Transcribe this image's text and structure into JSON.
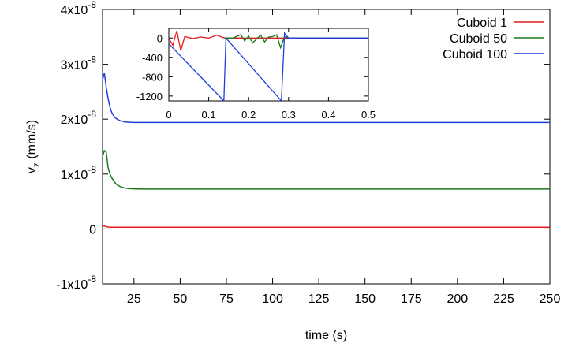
{
  "chart_data": [
    {
      "type": "line",
      "xlabel": "time (s)",
      "ylabel": "v",
      "ylabel_sub": "z",
      "ylabel_unit": " (mm/s)",
      "xlim": [
        8,
        250
      ],
      "ylim": [
        -1e-08,
        4e-08
      ],
      "x_ticks": [
        25,
        50,
        75,
        100,
        125,
        150,
        175,
        200,
        225,
        250
      ],
      "y_ticks": [
        {
          "value": -1e-08,
          "mant": "-1x10",
          "exp": "-8"
        },
        {
          "value": 0,
          "mant": "0",
          "exp": ""
        },
        {
          "value": 1e-08,
          "mant": "1x10",
          "exp": "-8"
        },
        {
          "value": 2e-08,
          "mant": "2x10",
          "exp": "-8"
        },
        {
          "value": 3e-08,
          "mant": "3x10",
          "exp": "-8"
        },
        {
          "value": 4e-08,
          "mant": "4x10",
          "exp": "-8"
        }
      ],
      "legend_position": "top-right",
      "grid": false,
      "series": [
        {
          "name": "Cuboid 1",
          "color": "#e41a1c",
          "x": [
            8,
            9,
            10,
            12,
            15,
            20,
            30,
            50,
            100,
            150,
            200,
            250
          ],
          "y": [
            5e-10,
            6e-10,
            4e-10,
            3e-10,
            3e-10,
            3e-10,
            3e-10,
            3e-10,
            3e-10,
            3e-10,
            3e-10,
            3e-10
          ]
        },
        {
          "name": "Cuboid 50",
          "color": "#1b7a1b",
          "x": [
            8,
            9,
            10,
            11,
            12,
            13,
            14,
            15,
            16,
            17,
            18,
            20,
            22,
            25,
            30,
            40,
            60,
            100,
            150,
            200,
            250
          ],
          "y": [
            1.32e-08,
            1.43e-08,
            1.4e-08,
            1.12e-08,
            1e-08,
            9.3e-09,
            8.8e-09,
            8.3e-09,
            8e-09,
            7.8e-09,
            7.65e-09,
            7.45e-09,
            7.35e-09,
            7.3e-09,
            7.25e-09,
            7.25e-09,
            7.25e-09,
            7.25e-09,
            7.25e-09,
            7.25e-09,
            7.25e-09
          ]
        },
        {
          "name": "Cuboid 100",
          "color": "#1f3fdd",
          "x": [
            8,
            9,
            10,
            11,
            12,
            13,
            14,
            15,
            16,
            17,
            18,
            20,
            22,
            25,
            30,
            40,
            60,
            100,
            150,
            200,
            250
          ],
          "y": [
            2.72e-08,
            2.84e-08,
            2.58e-08,
            2.38e-08,
            2.22e-08,
            2.12e-08,
            2.06e-08,
            2.02e-08,
            2e-08,
            1.98e-08,
            1.97e-08,
            1.95e-08,
            1.945e-08,
            1.94e-08,
            1.94e-08,
            1.94e-08,
            1.94e-08,
            1.94e-08,
            1.94e-08,
            1.94e-08,
            1.94e-08
          ]
        }
      ]
    },
    {
      "type": "line",
      "xlim": [
        0,
        0.5
      ],
      "ylim": [
        -1300,
        200
      ],
      "x_ticks": [
        0,
        0.1,
        0.2,
        0.3,
        0.4,
        0.5
      ],
      "y_ticks": [
        0,
        -400,
        -800,
        -1200
      ],
      "grid": false,
      "series": [
        {
          "name": "Cuboid 1",
          "color": "#e41a1c",
          "x": [
            0,
            0.01,
            0.02,
            0.03,
            0.04,
            0.06,
            0.08,
            0.1,
            0.12,
            0.14,
            0.16,
            0.2,
            0.3,
            0.4,
            0.5
          ],
          "y": [
            0,
            -150,
            150,
            -260,
            30,
            -10,
            20,
            0,
            60,
            0,
            0,
            0,
            0,
            0,
            0
          ]
        },
        {
          "name": "Cuboid 50",
          "color": "#1b7a1b",
          "x": [
            0.14,
            0.16,
            0.18,
            0.19,
            0.2,
            0.21,
            0.22,
            0.23,
            0.24,
            0.25,
            0.26,
            0.27,
            0.28,
            0.29,
            0.3,
            0.4,
            0.5
          ],
          "y": [
            0,
            0,
            70,
            -60,
            40,
            -100,
            -20,
            60,
            -80,
            20,
            30,
            70,
            -200,
            30,
            0,
            0,
            0
          ]
        },
        {
          "name": "Cuboid 100",
          "color": "#1f3fdd",
          "x": [
            0,
            0.138,
            0.143,
            0.282,
            0.29,
            0.3,
            0.5
          ],
          "y": [
            -120,
            -1300,
            0,
            -1300,
            100,
            0,
            0
          ]
        }
      ]
    }
  ]
}
